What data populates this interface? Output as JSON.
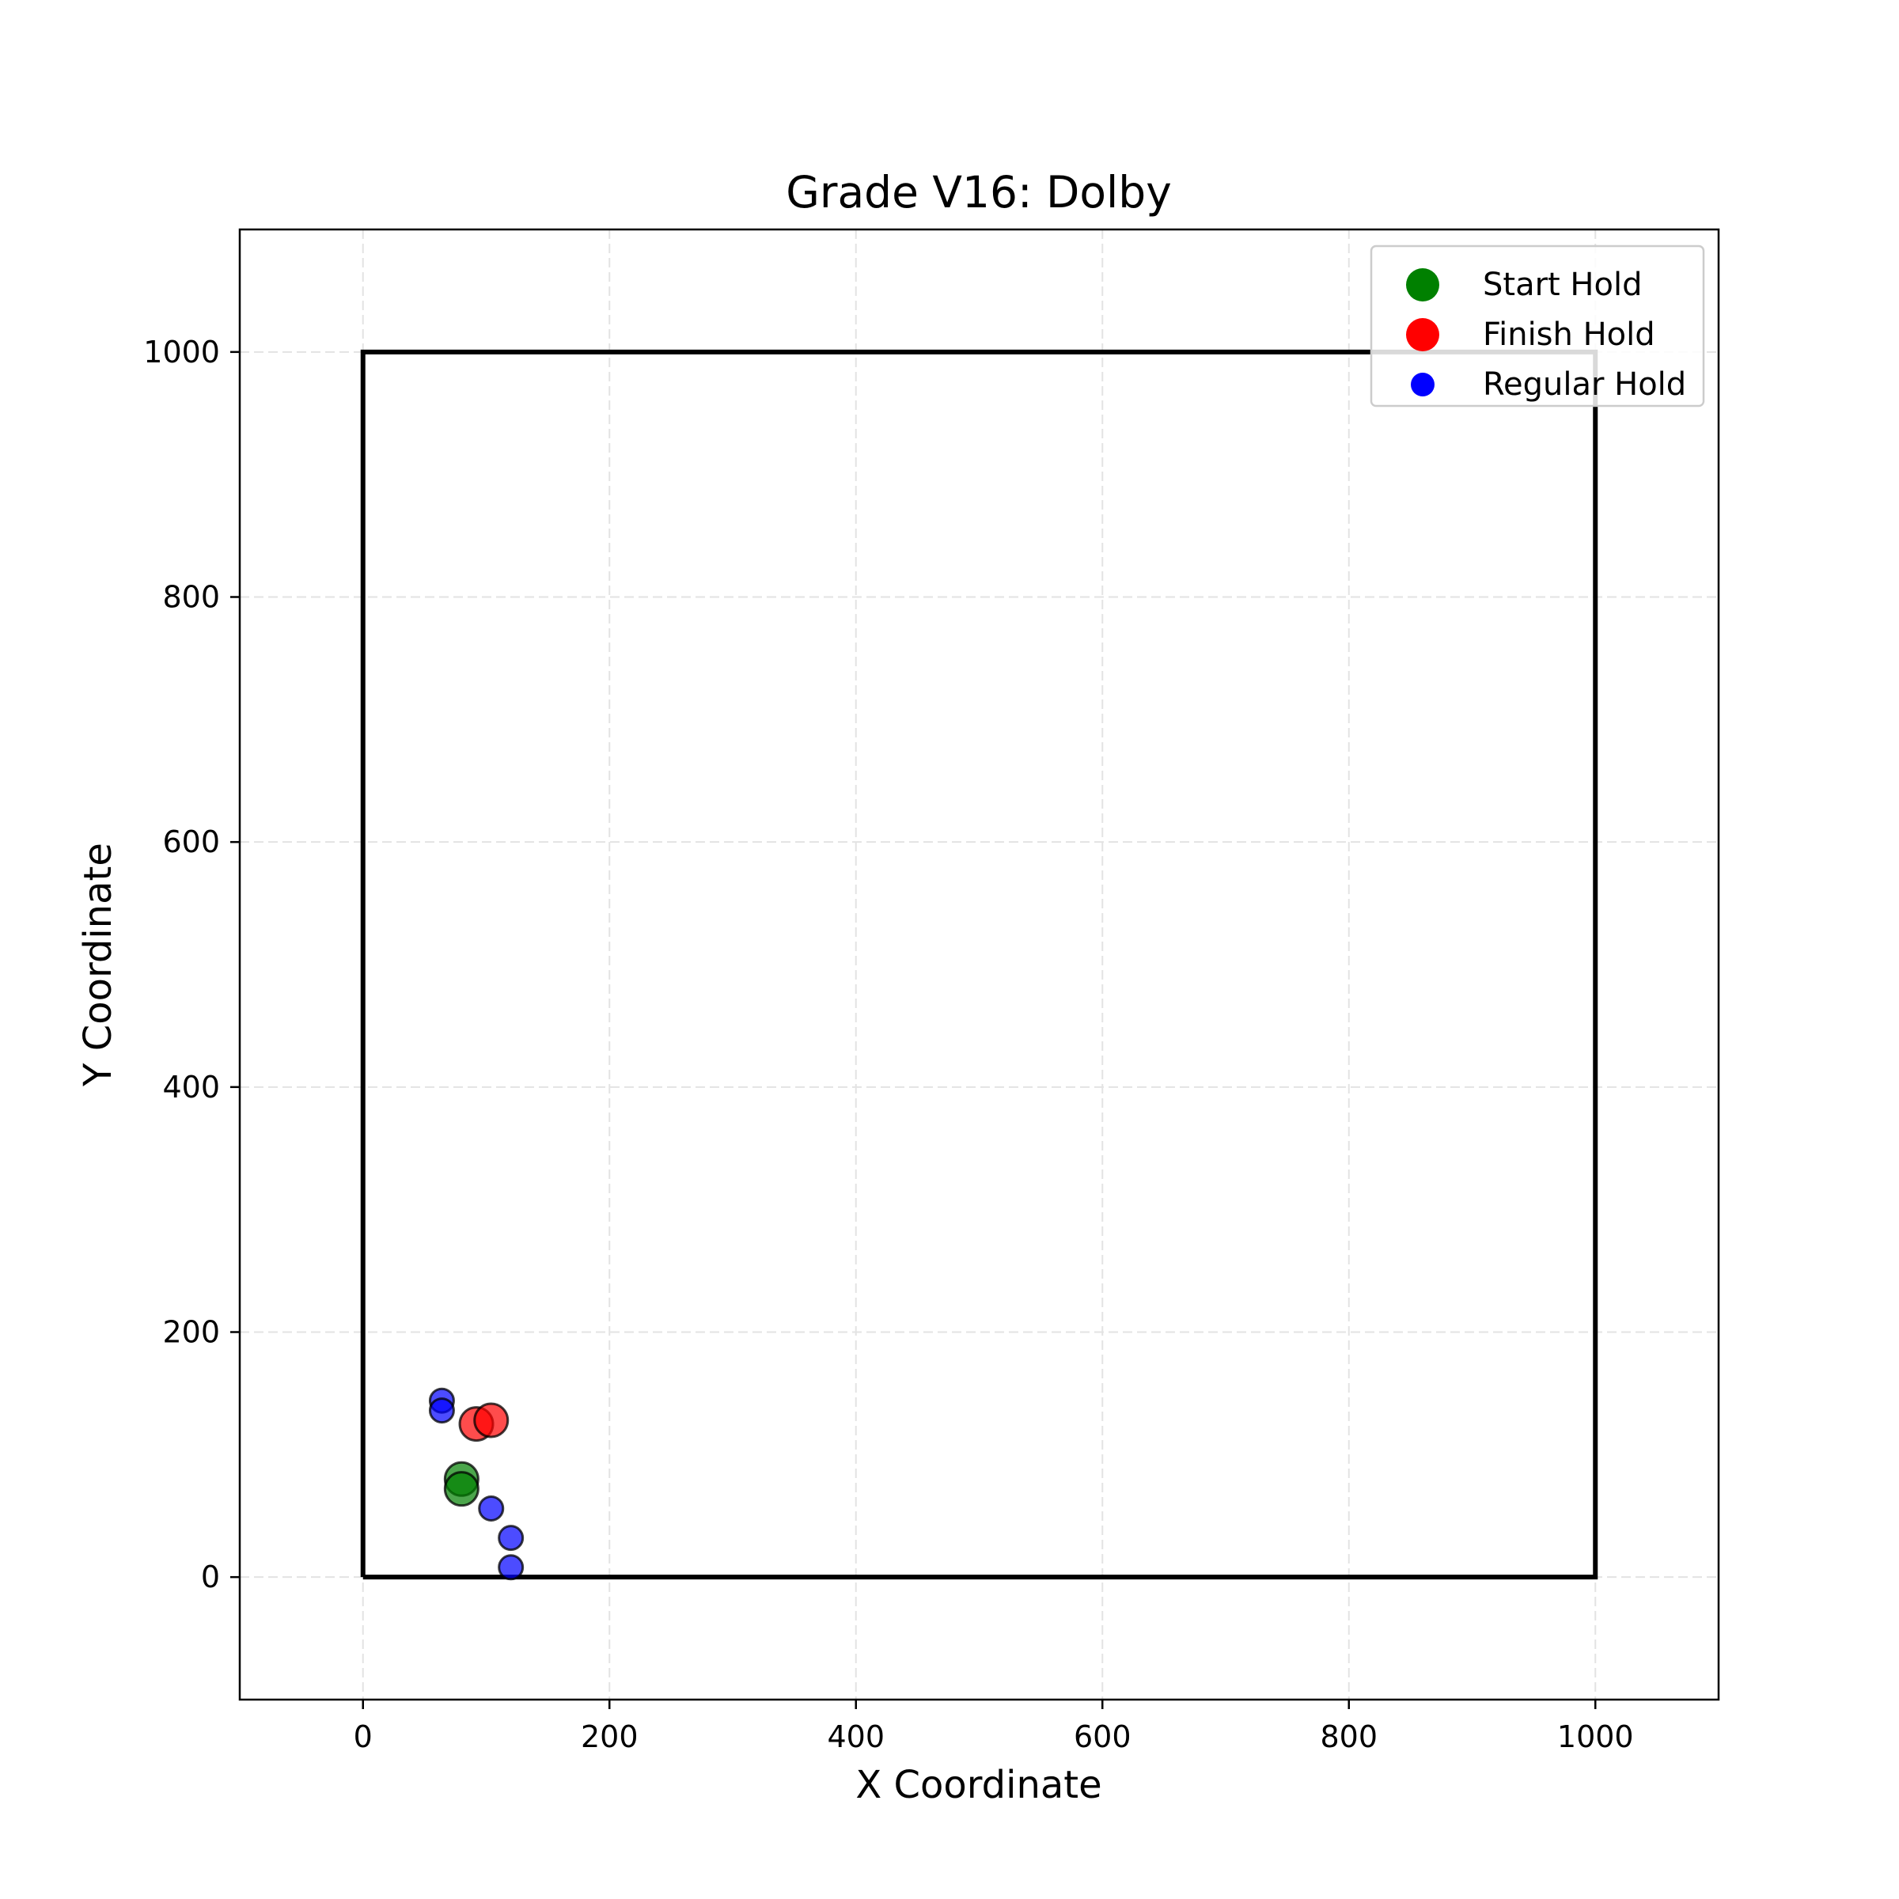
{
  "chart_data": {
    "type": "scatter",
    "title": "Grade V16: Dolby",
    "xlabel": "X Coordinate",
    "ylabel": "Y Coordinate",
    "xlim": [
      -100,
      1100
    ],
    "ylim": [
      -100,
      1100
    ],
    "xticks": [
      0,
      200,
      400,
      600,
      800,
      1000
    ],
    "yticks": [
      0,
      200,
      400,
      600,
      800,
      1000
    ],
    "xtick_labels": [
      "0",
      "200",
      "400",
      "600",
      "800",
      "1000"
    ],
    "ytick_labels": [
      "0",
      "200",
      "400",
      "600",
      "800",
      "1000"
    ],
    "grid": true,
    "legend_position": "top-right",
    "wall_outline": {
      "x": [
        0,
        1000,
        1000,
        0,
        0
      ],
      "y": [
        0,
        0,
        1000,
        1000,
        0
      ]
    },
    "series": [
      {
        "name": "Start Hold",
        "color": "#008000",
        "marker_size": "large",
        "points": [
          {
            "x": 80,
            "y": 80
          },
          {
            "x": 80,
            "y": 72
          }
        ]
      },
      {
        "name": "Finish Hold",
        "color": "#ff0000",
        "marker_size": "large",
        "points": [
          {
            "x": 92,
            "y": 125
          },
          {
            "x": 104,
            "y": 128
          }
        ]
      },
      {
        "name": "Regular Hold",
        "color": "#0000ff",
        "marker_size": "small",
        "points": [
          {
            "x": 64,
            "y": 144
          },
          {
            "x": 64,
            "y": 136
          },
          {
            "x": 104,
            "y": 56
          },
          {
            "x": 120,
            "y": 32
          },
          {
            "x": 120,
            "y": 8
          }
        ]
      }
    ]
  }
}
